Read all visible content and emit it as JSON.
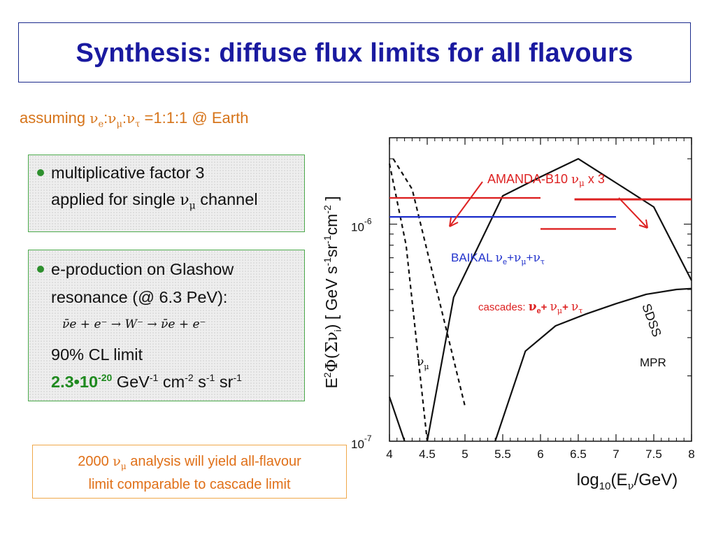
{
  "title": "Synthesis: diffuse flux limits for all flavours",
  "subtitle": {
    "prefix": "assuming ",
    "nu": "ν",
    "sub_e": "e",
    "sep1": ":",
    "sub_mu": "μ",
    "sep2": ":",
    "sub_tau": "τ",
    "suffix": " =1:1:1 @ Earth"
  },
  "box1": {
    "line1": "multiplicative factor 3",
    "line2_a": "applied for single ",
    "line2_nu": "ν",
    "line2_sub": "μ",
    "line2_b": " channel"
  },
  "box2": {
    "line1": "e-production on Glashow",
    "line2": "resonance (@ 6.3 PeV):",
    "equation": "ν̄e + e⁻ → W⁻ → ν̄e + e⁻",
    "line4": "90% CL limit",
    "limit_value": "2.3•10",
    "limit_exp": "-20",
    "limit_units_a": " GeV",
    "limit_units_exp1": "-1",
    "limit_units_b": " cm",
    "limit_units_exp2": "-2",
    "limit_units_c": " s",
    "limit_units_exp3": "-1",
    "limit_units_d": " sr",
    "limit_units_exp4": "-1"
  },
  "bottom_note": {
    "a": "2000 ",
    "nu": "ν",
    "sub": "μ",
    "b": "  analysis will yield all-flavour",
    "line2": "limit comparable to cascade limit"
  },
  "colors": {
    "title": "#1a1aa0",
    "subtitle": "#d6741a",
    "amanda": "#dd2222",
    "baikal": "#2233cc",
    "cascades": "#dd2222",
    "box_border": "#4caa4c",
    "note_border": "#f0a84a"
  },
  "chart_data": {
    "type": "line",
    "x_scale": "linear",
    "y_scale": "log",
    "xlim": [
      4,
      8
    ],
    "ylim": [
      1e-07,
      2.5e-06
    ],
    "xlabel": "log10(Eν/GeV)",
    "ylabel": "E²Φ(Σνi) [ GeV s⁻¹sr⁻¹cm⁻² ]",
    "x_ticks": [
      "4",
      "4.5",
      "5",
      "5.5",
      "6",
      "6.5",
      "7",
      "7.5",
      "8"
    ],
    "y_ticks": [
      {
        "value": 1e-06,
        "label_base": "10",
        "label_exp": "-6"
      },
      {
        "value": 1e-07,
        "label_base": "10",
        "label_exp": "-7"
      }
    ],
    "limits": [
      {
        "name": "AMANDA-B10 νμ x 3",
        "color": "#dd2222",
        "y": 1.32e-06,
        "x_start": 4.0,
        "x_end": 6.0
      },
      {
        "name": "AMANDA-B10 νμ x 3",
        "color": "#dd2222",
        "y": 1.3e-06,
        "x_start": 6.45,
        "x_end": 8.0
      },
      {
        "name": "BAIKAL νe+νμ+ντ",
        "color": "#2233cc",
        "y": 1.08e-06,
        "x_start": 4.0,
        "x_end": 7.0
      },
      {
        "name": "cascades: νe+ νμ+ ντ",
        "color": "#dd2222",
        "y": 9.5e-07,
        "x_start": 6.0,
        "x_end": 7.0
      }
    ],
    "curves": [
      {
        "name": "SDSS",
        "style": "solid",
        "x": [
          4.5,
          4.85,
          5.5,
          6.0,
          6.5,
          7.0,
          7.5,
          8.0
        ],
        "y": [
          1e-07,
          4.6e-07,
          1.35e-06,
          1.65e-06,
          2e-06,
          1.55e-06,
          1.2e-06,
          5.5e-07
        ]
      },
      {
        "name": "MPR",
        "style": "solid",
        "x": [
          5.4,
          5.8,
          6.2,
          6.6,
          7.0,
          7.4,
          7.8,
          8.0
        ],
        "y": [
          1e-07,
          2.6e-07,
          3.4e-07,
          3.85e-07,
          4.3e-07,
          4.75e-07,
          5e-07,
          5.05e-07
        ]
      },
      {
        "name": "νμ",
        "style": "dashed",
        "x": [
          4.0,
          4.22,
          4.5
        ],
        "y": [
          1.9e-06,
          8e-07,
          1e-07
        ]
      },
      {
        "name": "",
        "style": "dashed",
        "x": [
          4.05,
          4.3,
          5.0
        ],
        "y": [
          2e-06,
          1.45e-06,
          1.45e-07
        ]
      },
      {
        "name": "",
        "style": "solid",
        "x": [
          4.0,
          4.2
        ],
        "y": [
          1.6e-07,
          1e-07
        ]
      }
    ],
    "labels": {
      "amanda": {
        "a": "AMANDA-B10 ",
        "nu": "ν",
        "sub": "μ",
        "b": " x 3"
      },
      "baikal": {
        "a": "BAIKAL ",
        "nu1": "ν",
        "sub1": "e",
        "plus1": "+",
        "nu2": "ν",
        "sub2": "μ",
        "plus2": "+",
        "nu3": "ν",
        "sub3": "τ"
      },
      "cascades": {
        "a": "cascades: ",
        "nu1": "ν",
        "sub1": "e",
        "plus1": "+ ",
        "nu2": "ν",
        "sub2": "μ",
        "plus2": "+ ",
        "nu3": "ν",
        "sub3": "τ"
      },
      "sdss": "SDSS",
      "mpr": "MPR",
      "numu": {
        "nu": "ν",
        "sub": "μ"
      }
    }
  }
}
